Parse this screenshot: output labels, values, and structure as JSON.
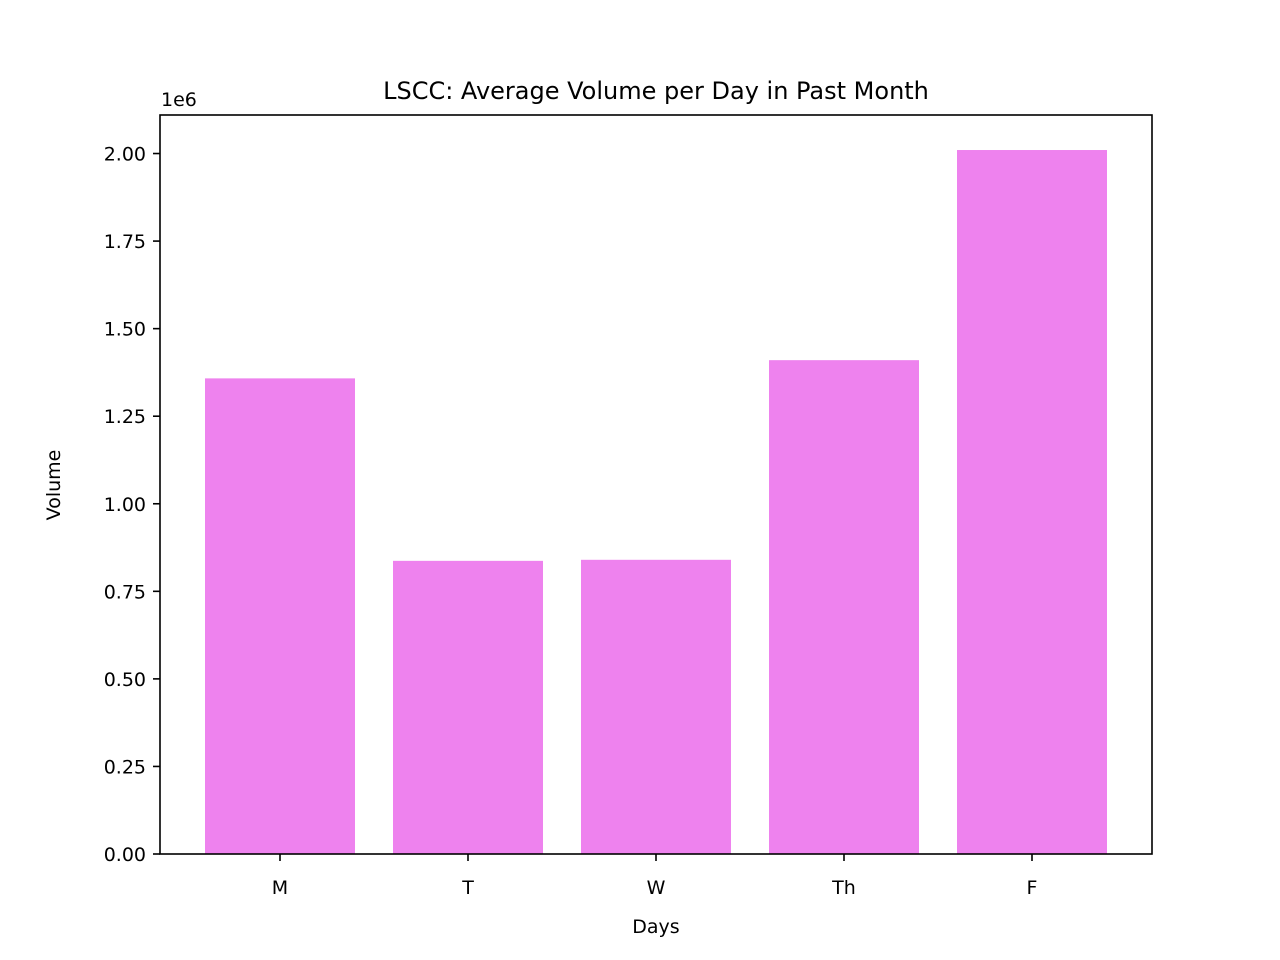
{
  "chart_data": {
    "type": "bar",
    "title": "LSCC: Average Volume per Day in Past Month",
    "xlabel": "Days",
    "ylabel": "Volume",
    "y_offset_label": "1e6",
    "categories": [
      "M",
      "T",
      "W",
      "Th",
      "F"
    ],
    "values": [
      1358000,
      837000,
      840000,
      1410000,
      2010000
    ],
    "ylim": [
      0,
      2110000
    ],
    "yticks": [
      0,
      250000,
      500000,
      750000,
      1000000,
      1250000,
      1500000,
      1750000,
      2000000
    ],
    "ytick_labels": [
      "0.00",
      "0.25",
      "0.50",
      "0.75",
      "1.00",
      "1.25",
      "1.50",
      "1.75",
      "2.00"
    ],
    "bar_color": "#ee82ee",
    "grid": false,
    "legend": false
  }
}
